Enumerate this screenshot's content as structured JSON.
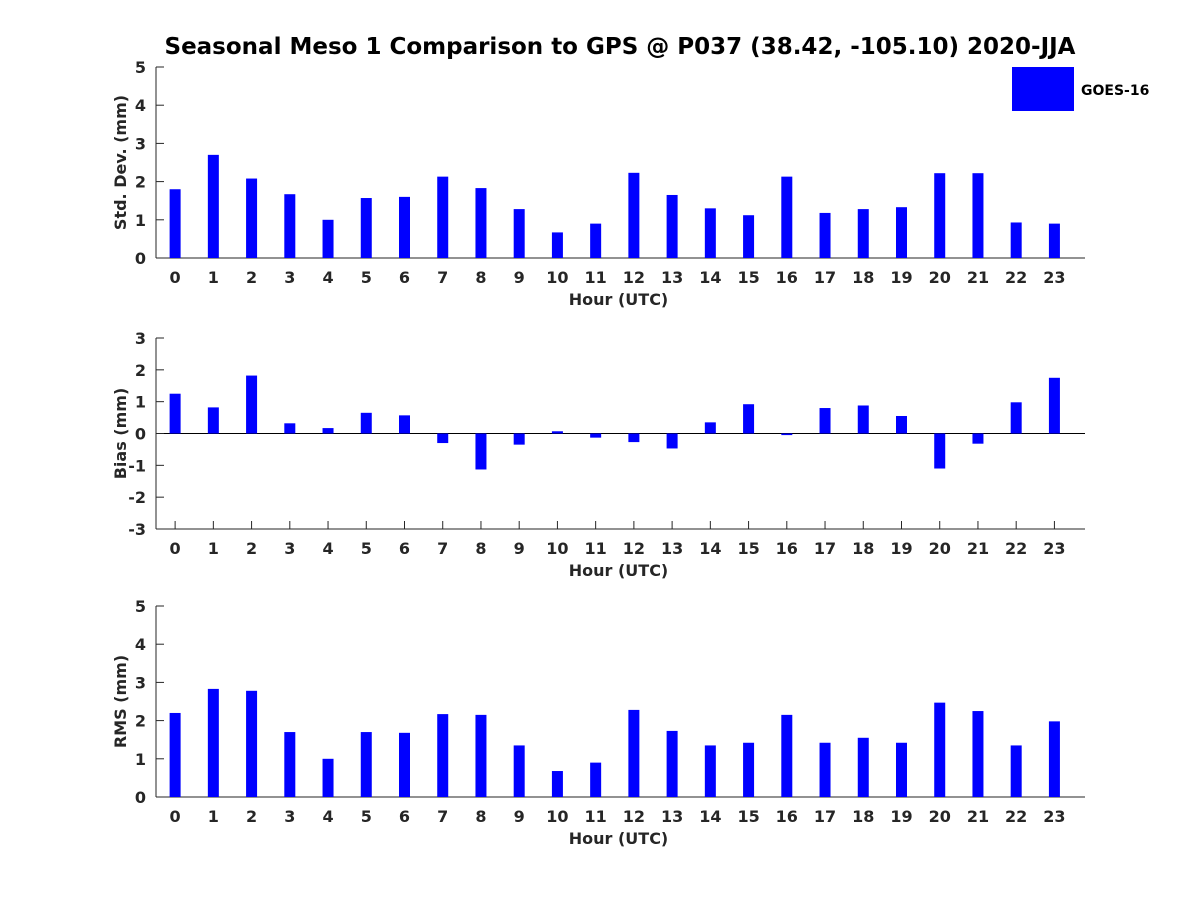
{
  "title": "Seasonal Meso 1 Comparison to GPS @ P037 (38.42, -105.10) 2020-JJA",
  "legend": {
    "label": "GOES-16",
    "color": "#0000ff",
    "placement": "top-right"
  },
  "chart_data": [
    {
      "type": "bar",
      "xlabel": "Hour (UTC)",
      "ylabel": "Std. Dev. (mm)",
      "ylim": [
        0,
        5
      ],
      "yticks": [
        0,
        1,
        2,
        3,
        4,
        5
      ],
      "categories": [
        0,
        1,
        2,
        3,
        4,
        5,
        6,
        7,
        8,
        9,
        10,
        11,
        12,
        13,
        14,
        15,
        16,
        17,
        18,
        19,
        20,
        21,
        22,
        23
      ],
      "series": [
        {
          "name": "GOES-16",
          "color": "#0000ff",
          "values": [
            1.8,
            2.7,
            2.08,
            1.67,
            1.0,
            1.57,
            1.6,
            2.13,
            1.83,
            1.28,
            0.67,
            0.9,
            2.23,
            1.65,
            1.3,
            1.12,
            2.13,
            1.18,
            1.28,
            1.33,
            2.22,
            2.22,
            0.93,
            0.9
          ]
        }
      ]
    },
    {
      "type": "bar",
      "xlabel": "Hour (UTC)",
      "ylabel": "Bias (mm)",
      "ylim": [
        -3,
        3
      ],
      "yticks": [
        -3,
        -2,
        -1,
        0,
        1,
        2,
        3
      ],
      "categories": [
        0,
        1,
        2,
        3,
        4,
        5,
        6,
        7,
        8,
        9,
        10,
        11,
        12,
        13,
        14,
        15,
        16,
        17,
        18,
        19,
        20,
        21,
        22,
        23
      ],
      "series": [
        {
          "name": "GOES-16",
          "color": "#0000ff",
          "values": [
            1.25,
            0.82,
            1.82,
            0.32,
            0.17,
            0.65,
            0.57,
            -0.3,
            -1.13,
            -0.35,
            0.07,
            -0.13,
            -0.27,
            -0.47,
            0.35,
            0.92,
            -0.05,
            0.8,
            0.88,
            0.55,
            -1.1,
            -0.32,
            0.98,
            1.75
          ]
        }
      ]
    },
    {
      "type": "bar",
      "xlabel": "Hour (UTC)",
      "ylabel": "RMS (mm)",
      "ylim": [
        0,
        5
      ],
      "yticks": [
        0,
        1,
        2,
        3,
        4,
        5
      ],
      "categories": [
        0,
        1,
        2,
        3,
        4,
        5,
        6,
        7,
        8,
        9,
        10,
        11,
        12,
        13,
        14,
        15,
        16,
        17,
        18,
        19,
        20,
        21,
        22,
        23
      ],
      "series": [
        {
          "name": "GOES-16",
          "color": "#0000ff",
          "values": [
            2.2,
            2.83,
            2.78,
            1.7,
            1.0,
            1.7,
            1.68,
            2.17,
            2.15,
            1.35,
            0.68,
            0.9,
            2.28,
            1.73,
            1.35,
            1.42,
            2.15,
            1.42,
            1.55,
            1.42,
            2.47,
            2.25,
            1.35,
            1.98
          ]
        }
      ]
    }
  ]
}
